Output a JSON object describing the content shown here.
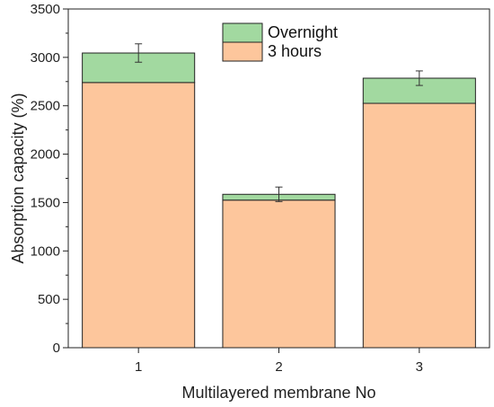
{
  "chart_data": {
    "type": "bar",
    "stacked": true,
    "categories": [
      "1",
      "2",
      "3"
    ],
    "series": [
      {
        "name": "3 hours",
        "values": [
          2740,
          1525,
          2525
        ],
        "color": "#FDC69C"
      },
      {
        "name": "Overnight",
        "values": [
          305,
          60,
          260
        ],
        "color": "#A2D9A0",
        "error": [
          95,
          75,
          75
        ]
      }
    ],
    "xlabel": "Multilayered membrane No",
    "ylabel": "Absorption capacity (%)",
    "ylim": [
      0,
      3500
    ],
    "yticks": [
      0,
      500,
      1000,
      1500,
      2000,
      2500,
      3000,
      3500
    ],
    "grid": false,
    "legend": {
      "placement": "top-center",
      "order": [
        "Overnight",
        "3 hours"
      ]
    }
  }
}
